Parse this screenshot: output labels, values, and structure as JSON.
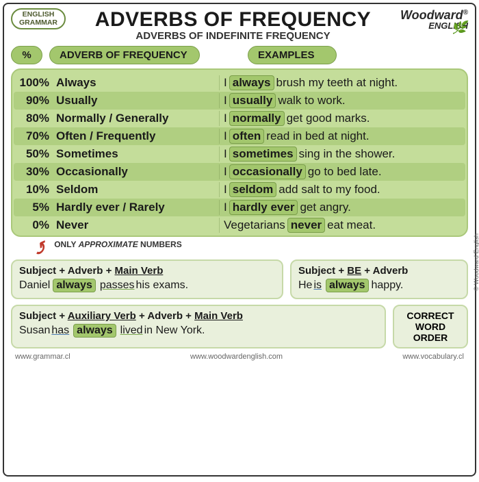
{
  "badge": {
    "l1": "ENGLISH",
    "l2": "GRAMMAR"
  },
  "title": "ADVERBS OF FREQUENCY",
  "subtitle_pre": "ADVERBS OF ",
  "subtitle_b": "INDEFINITE",
  "subtitle_post": " FREQUENCY",
  "brand": {
    "name": "Woodward",
    "sup": "®",
    "sub": "ENGLISH"
  },
  "hdrs": {
    "pct": "%",
    "adv": "ADVERB OF FREQUENCY",
    "ex": "EXAMPLES"
  },
  "rows": [
    {
      "p": "100%",
      "a": "Always",
      "pre": "I ",
      "hl": "always",
      "post": " brush my teeth at night."
    },
    {
      "p": "90%",
      "a": "Usually",
      "pre": "I ",
      "hl": "usually",
      "post": " walk to work."
    },
    {
      "p": "80%",
      "a": "Normally / Generally",
      "pre": "I ",
      "hl": "normally",
      "post": " get good marks."
    },
    {
      "p": "70%",
      "a": "Often / Frequently",
      "pre": "I ",
      "hl": "often",
      "post": " read in bed at night."
    },
    {
      "p": "50%",
      "a": "Sometimes",
      "pre": "I ",
      "hl": "sometimes",
      "post": " sing in the shower."
    },
    {
      "p": "30%",
      "a": "Occasionally",
      "pre": "I ",
      "hl": "occasionally",
      "post": " go to bed late."
    },
    {
      "p": "10%",
      "a": "Seldom",
      "pre": "I ",
      "hl": "seldom",
      "post": " add salt to my food."
    },
    {
      "p": "5%",
      "a": "Hardly ever / Rarely",
      "pre": "I ",
      "hl": "hardly ever",
      "post": " get angry."
    },
    {
      "p": "0%",
      "a": "Never",
      "pre": "Vegetarians ",
      "hl": "never",
      "post": " eat meat."
    }
  ],
  "note_pre": "ONLY ",
  "note_i": "APPROXIMATE",
  "note_post": " NUMBERS",
  "copyright": "© Woodward English",
  "rule1": {
    "f": "Subject + Adverb + ",
    "u": "Main Verb",
    "ex_pre": "Daniel ",
    "ex_hl": "always",
    "ex_mid": " ",
    "ex_v": "passes",
    "ex_post": " his exams."
  },
  "rule2": {
    "f": "Subject + ",
    "u": "BE",
    "f2": " + Adverb",
    "ex_pre": "He ",
    "ex_v": "is",
    "ex_mid": " ",
    "ex_hl": "always",
    "ex_post": " happy."
  },
  "rule3": {
    "f": "Subject + ",
    "u1": "Auxiliary Verb",
    "f2": " + Adverb + ",
    "u2": "Main Verb",
    "ex_pre": "Susan ",
    "ex_v1": "has",
    "ex_mid": " ",
    "ex_hl": "always",
    "ex_mid2": " ",
    "ex_v2": "lived",
    "ex_post": " in New York."
  },
  "order": {
    "l1": "CORRECT",
    "l2": "WORD",
    "l3": "ORDER"
  },
  "ftr": {
    "u1": "www.grammar.cl",
    "u2": "www.woodwardenglish.com",
    "u3": "www.vocabulary.cl"
  },
  "colors": {
    "pill_bg": "#a3c76d",
    "pill_border": "#7a9e4a",
    "table_bg": "#c4dd9a",
    "rule_bg": "#e9f0dc",
    "arrow": "#c0392b"
  }
}
